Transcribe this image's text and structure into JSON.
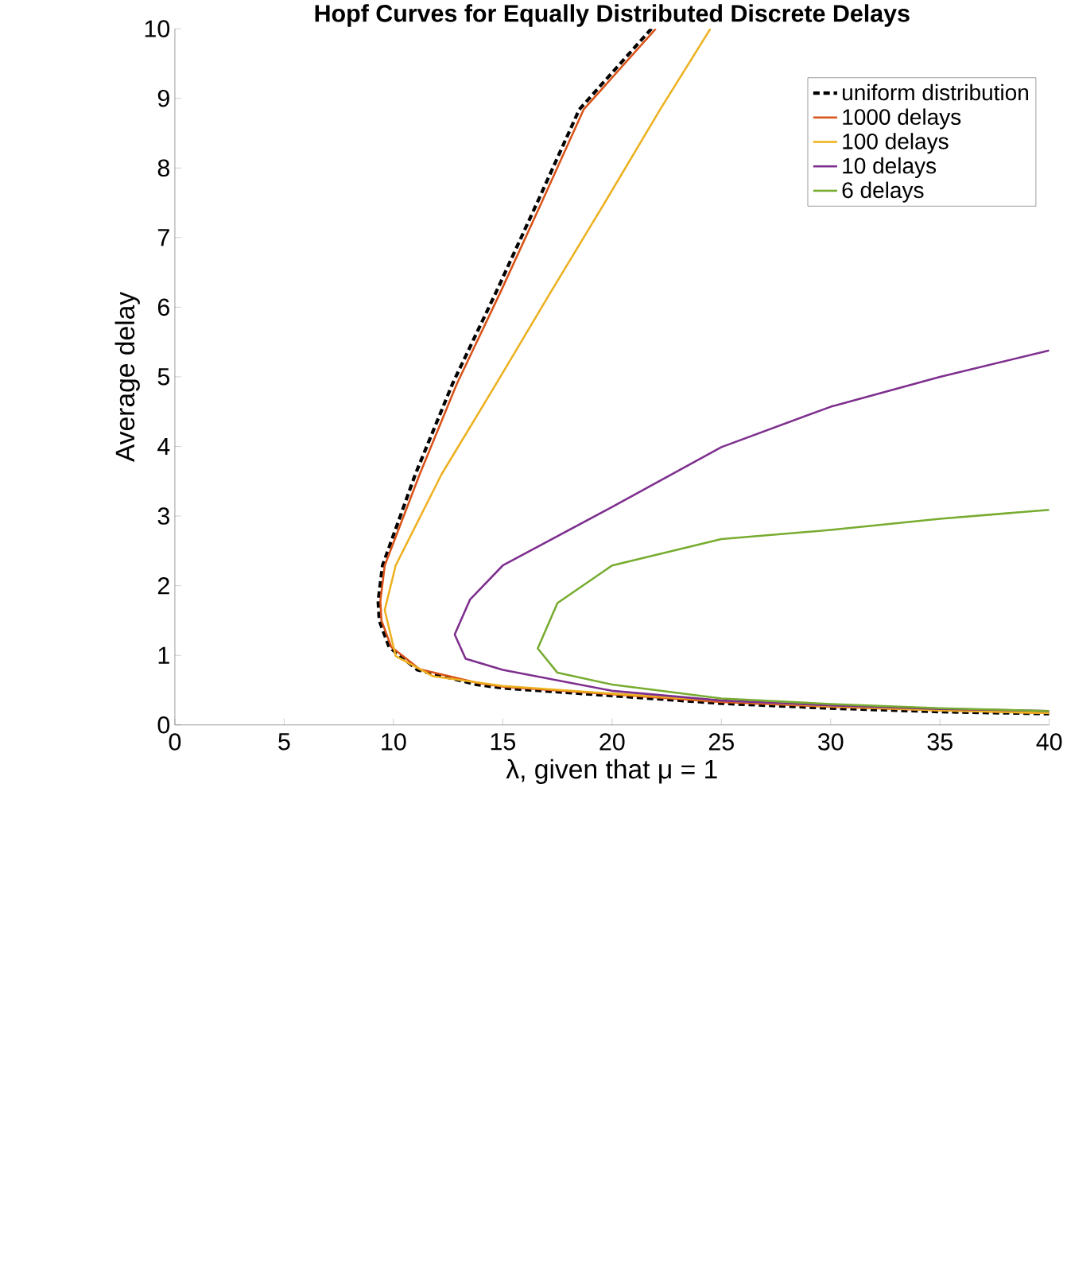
{
  "chart_data": {
    "type": "line",
    "title": "Hopf Curves for Equally Distributed Discrete Delays",
    "xlabel": "λ, given that μ = 1",
    "ylabel": "Average delay",
    "xlim": [
      0,
      40
    ],
    "ylim": [
      0,
      10
    ],
    "xticks": [
      0,
      5,
      10,
      15,
      20,
      25,
      30,
      35,
      40
    ],
    "yticks": [
      0,
      1,
      2,
      3,
      4,
      5,
      6,
      7,
      8,
      9,
      10
    ],
    "grid": false,
    "legend": "top right",
    "series": [
      {
        "name": "uniform distribution",
        "color": "#000000",
        "line_style": "dashed",
        "x": [
          21.8,
          18.5,
          16.6,
          14.7,
          12.7,
          11.0,
          9.5,
          9.3,
          9.35,
          9.8,
          11.1,
          13.8,
          15,
          20,
          25,
          30,
          35,
          40
        ],
        "values": [
          10,
          8.84,
          7.52,
          6.22,
          4.9,
          3.6,
          2.29,
          1.78,
          1.5,
          1.12,
          0.79,
          0.58,
          0.53,
          0.42,
          0.31,
          0.24,
          0.19,
          0.16
        ]
      },
      {
        "name": "1000 delays",
        "color": "#d95319",
        "line_style": "solid",
        "x": [
          22.0,
          18.7,
          16.8,
          14.9,
          12.9,
          11.2,
          9.6,
          9.4,
          9.45,
          9.9,
          11.2,
          13.9,
          15,
          20,
          25,
          30,
          35,
          40
        ],
        "values": [
          10,
          8.84,
          7.52,
          6.22,
          4.9,
          3.6,
          2.29,
          1.78,
          1.5,
          1.12,
          0.8,
          0.6,
          0.55,
          0.44,
          0.33,
          0.26,
          0.21,
          0.17
        ]
      },
      {
        "name": "100 delays",
        "color": "#edb120",
        "line_style": "solid",
        "x": [
          24.5,
          22.2,
          19.7,
          17.2,
          14.7,
          12.2,
          10.1,
          9.6,
          10.1,
          11.8,
          15,
          20,
          25,
          30,
          35,
          40
        ],
        "values": [
          10,
          8.84,
          7.52,
          6.22,
          4.9,
          3.6,
          2.29,
          1.65,
          0.99,
          0.7,
          0.56,
          0.45,
          0.35,
          0.27,
          0.21,
          0.17
        ]
      },
      {
        "name": "10 delays",
        "color": "#7e2f8e",
        "line_style": "solid",
        "x": [
          40,
          35,
          30,
          25,
          20,
          15,
          13.5,
          12.8,
          13.3,
          15,
          20,
          25,
          30,
          35,
          40
        ],
        "values": [
          5.38,
          5.0,
          4.57,
          3.99,
          3.13,
          2.29,
          1.8,
          1.3,
          0.95,
          0.79,
          0.49,
          0.35,
          0.28,
          0.23,
          0.2
        ]
      },
      {
        "name": "6 delays",
        "color": "#77ac30",
        "line_style": "solid",
        "x": [
          40,
          35,
          30,
          25,
          20,
          17.5,
          16.6,
          17.5,
          20,
          25,
          30,
          35,
          40
        ],
        "values": [
          3.09,
          2.96,
          2.8,
          2.67,
          2.29,
          1.75,
          1.1,
          0.75,
          0.58,
          0.38,
          0.3,
          0.24,
          0.2
        ]
      }
    ]
  }
}
